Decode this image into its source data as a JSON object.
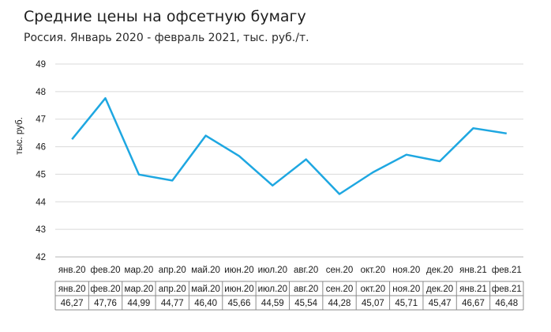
{
  "title": "Средние цены на офсетную бумагу",
  "subtitle": "Россия. Январь 2020 - февраль 2021, тыс. руб./т.",
  "chart_data": {
    "type": "line",
    "title": "Средние цены на офсетную бумагу",
    "subtitle": "Россия. Январь 2020 - февраль 2021, тыс. руб./т.",
    "ylabel": "тыс. руб.",
    "xlabel": "",
    "ylim": [
      42,
      49
    ],
    "yticks": [
      "42",
      "43",
      "44",
      "45",
      "46",
      "47",
      "48",
      "49"
    ],
    "grid": true,
    "categories": [
      "янв.20",
      "фев.20",
      "мар.20",
      "апр.20",
      "май.20",
      "июн.20",
      "июл.20",
      "авг.20",
      "сен.20",
      "окт.20",
      "ноя.20",
      "дек.20",
      "янв.21",
      "фев.21"
    ],
    "values": [
      46.27,
      47.76,
      44.99,
      44.77,
      46.4,
      45.66,
      44.59,
      45.54,
      44.28,
      45.07,
      45.71,
      45.47,
      46.67,
      46.48
    ],
    "value_labels": [
      "46,27",
      "47,76",
      "44,99",
      "44,77",
      "46,40",
      "45,66",
      "44,59",
      "45,54",
      "44,28",
      "45,07",
      "45,71",
      "45,47",
      "46,67",
      "46,48"
    ],
    "line_color": "#1ea7e1",
    "grid_color": "#d9d9d9",
    "data_table": true
  }
}
